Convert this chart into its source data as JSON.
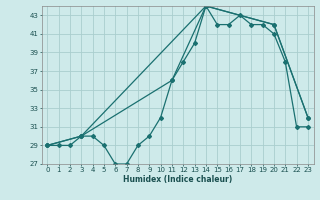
{
  "xlabel": "Humidex (Indice chaleur)",
  "bg_color": "#ceeaea",
  "grid_color": "#aacece",
  "line_color": "#1a7070",
  "ylim": [
    27,
    44
  ],
  "xlim": [
    -0.5,
    23.5
  ],
  "yticks": [
    27,
    29,
    31,
    33,
    35,
    37,
    39,
    41,
    43
  ],
  "xticks": [
    0,
    1,
    2,
    3,
    4,
    5,
    6,
    7,
    8,
    9,
    10,
    11,
    12,
    13,
    14,
    15,
    16,
    17,
    18,
    19,
    20,
    21,
    22,
    23
  ],
  "line1_x": [
    0,
    1,
    2,
    3,
    4,
    5,
    6,
    7,
    8,
    9,
    10,
    11,
    12,
    13,
    14,
    15,
    16,
    17,
    18,
    19,
    20,
    21,
    22,
    23
  ],
  "line1_y": [
    29,
    29,
    29,
    30,
    30,
    29,
    27,
    27,
    29,
    30,
    32,
    36,
    38,
    40,
    44,
    42,
    42,
    43,
    42,
    42,
    41,
    38,
    31,
    31
  ],
  "line2_x": [
    0,
    3,
    11,
    14,
    20,
    23
  ],
  "line2_y": [
    29,
    30,
    36,
    44,
    42,
    32
  ],
  "line3_x": [
    0,
    3,
    14,
    20,
    23
  ],
  "line3_y": [
    29,
    30,
    44,
    42,
    32
  ]
}
